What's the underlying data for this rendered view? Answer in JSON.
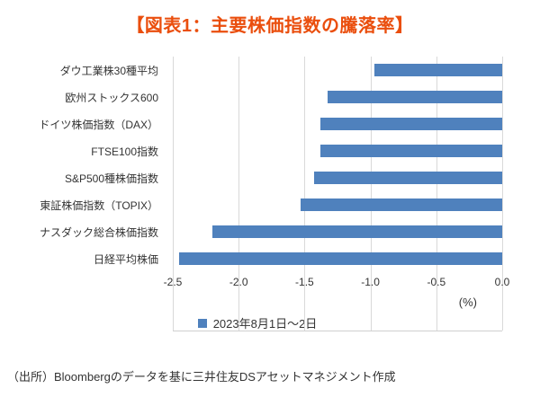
{
  "title": {
    "text": "【図表1：主要株価指数の騰落率】",
    "color": "#ea4e0d"
  },
  "chart_data": {
    "type": "bar",
    "orientation": "horizontal",
    "title": "【図表1：主要株価指数の騰落率】",
    "categories": [
      "ダウ工業株30種平均",
      "欧州ストックス600",
      "ドイツ株価指数（DAX）",
      "FTSE100指数",
      "S&P500種株価指数",
      "東証株価指数（TOPIX）",
      "ナスダック総合株価指数",
      "日経平均株価"
    ],
    "values": [
      -0.95,
      -1.3,
      -1.35,
      -1.35,
      -1.4,
      -1.5,
      -2.15,
      -2.4
    ],
    "xlim": [
      -2.5,
      0.0
    ],
    "x_ticks": [
      "-2.5",
      "-2.0",
      "-1.5",
      "-1.0",
      "-0.5",
      "0.0"
    ],
    "x_unit": "(%)",
    "grid": true,
    "bar_color": "#4f81bd",
    "legend_position": "bottom",
    "legend": "2023年8月1日～2日"
  },
  "legend": {
    "label": "2023年8月1日～2日",
    "swatch_color": "#4f81bd"
  },
  "footer": {
    "source": "（出所）Bloombergのデータを基に三井住友DSアセットマネジメント作成"
  }
}
